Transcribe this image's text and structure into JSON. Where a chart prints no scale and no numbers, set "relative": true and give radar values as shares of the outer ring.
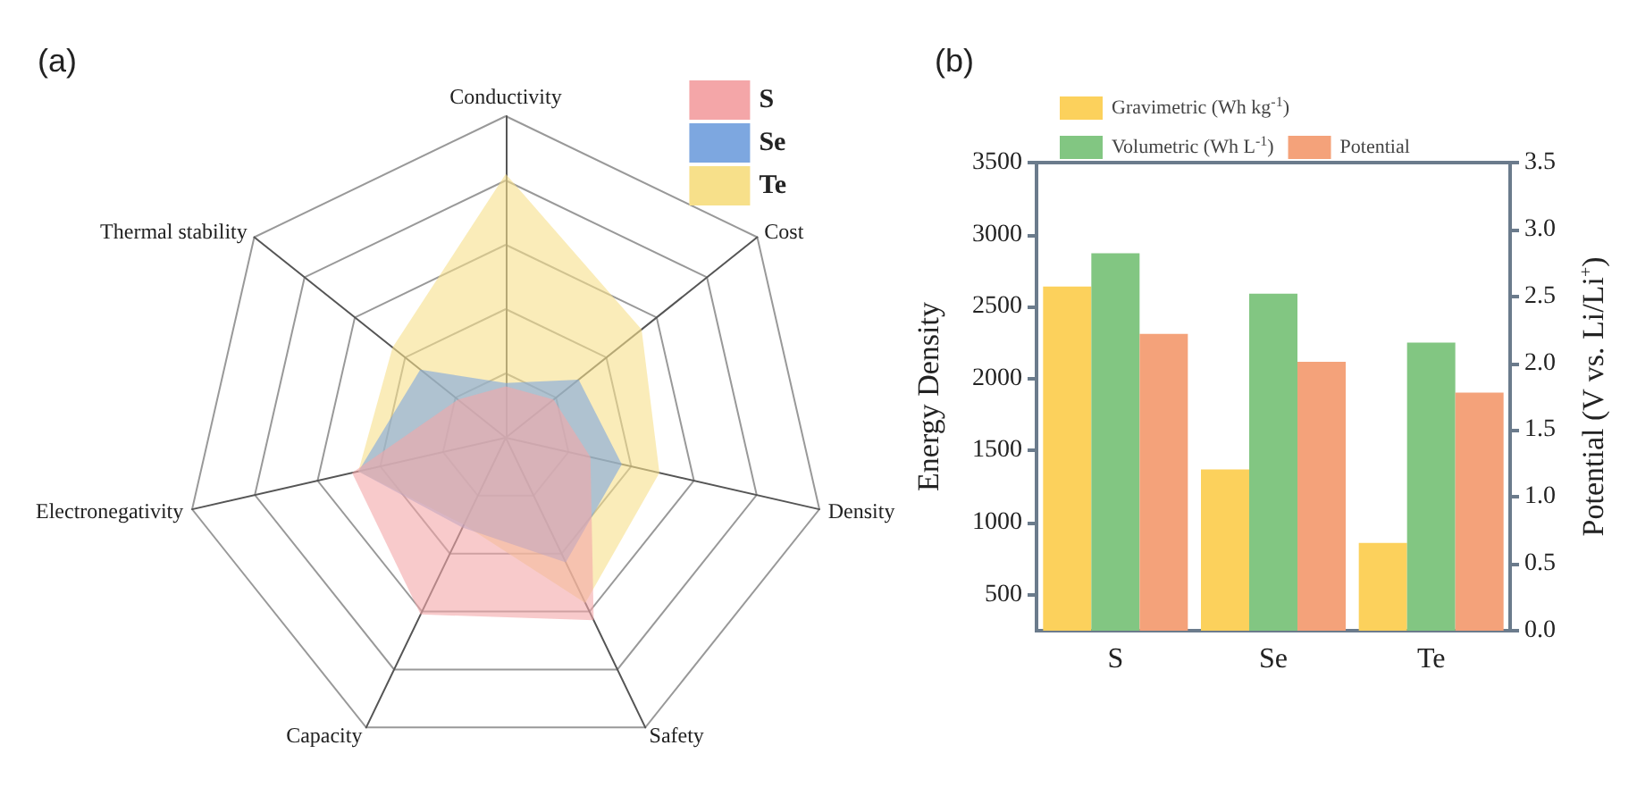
{
  "chart_data": [
    {
      "type": "radar",
      "title": "(a)",
      "relative": true,
      "categories": [
        "Conductivity",
        "Cost",
        "Density",
        "Safety",
        "Capacity",
        "Electronegativity",
        "Thermal stability"
      ],
      "legend": "top right",
      "marker": "none",
      "grid": true,
      "series": [
        {
          "name": "S",
          "color": "#f4a6a8",
          "values": [
            0.16,
            0.19,
            0.27,
            0.63,
            0.61,
            0.49,
            0.19
          ]
        },
        {
          "name": "Se",
          "color": "#7da7e0",
          "values": [
            0.17,
            0.29,
            0.37,
            0.43,
            0.31,
            0.47,
            0.34
          ]
        },
        {
          "name": "Te",
          "color": "#f7e08a",
          "values": [
            0.82,
            0.54,
            0.49,
            0.57,
            0.3,
            0.47,
            0.45
          ]
        }
      ]
    },
    {
      "type": "bar",
      "title": "(b)",
      "categories": [
        "S",
        "Se",
        "Te"
      ],
      "ylabel": "Energy Density",
      "y2label": "Potential (V vs. Li/Li$^{+}$)",
      "ylim": [
        250,
        3500
      ],
      "yticks": [
        500,
        1000,
        1500,
        2000,
        2500,
        3000,
        3500
      ],
      "y2lim": [
        0,
        3.5
      ],
      "y2ticks": [
        {
          "value": 0,
          "label": "0.0"
        },
        0.5,
        {
          "value": 1,
          "label": "1.0"
        },
        1.5,
        {
          "value": 2,
          "label": "2.0"
        },
        2.5,
        {
          "value": 3,
          "label": "3.0"
        },
        3.5
      ],
      "legend": "top left",
      "grid": false,
      "series": [
        {
          "name": "Gravimetric (Wh kg$^{-1}$)",
          "color": "#fcd15c",
          "values": [
            2640,
            1370,
            860
          ]
        },
        {
          "name": "Volumetric (Wh L$^{-1}$)",
          "color": "#82c682",
          "values": [
            2870,
            2590,
            2250
          ]
        },
        {
          "name": "Potential",
          "color": "#f4a27a",
          "axis": "y2",
          "values": [
            2.22,
            2.01,
            1.78
          ]
        }
      ]
    }
  ]
}
